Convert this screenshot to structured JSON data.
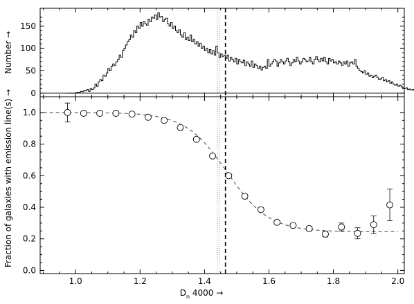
{
  "chart_data": [
    {
      "type": "histogram",
      "panel": "top",
      "ylabel": "Number →",
      "xlim": [
        0.89,
        2.02
      ],
      "ylim": [
        -8,
        190
      ],
      "yticks": [
        0,
        50,
        100,
        150
      ],
      "ytick_labels": [
        "0",
        "50",
        "100",
        "150"
      ],
      "bin_width": 0.005,
      "x_start": 0.975,
      "values": [
        0,
        0,
        0,
        0,
        0,
        1,
        2,
        2,
        4,
        3,
        6,
        5,
        8,
        4,
        10,
        8,
        12,
        20,
        15,
        25,
        30,
        28,
        40,
        38,
        45,
        55,
        50,
        60,
        65,
        62,
        70,
        75,
        85,
        80,
        95,
        100,
        108,
        115,
        120,
        130,
        125,
        140,
        135,
        150,
        145,
        158,
        150,
        160,
        155,
        152,
        165,
        160,
        170,
        168,
        175,
        165,
        180,
        170,
        172,
        160,
        165,
        168,
        155,
        150,
        158,
        145,
        150,
        140,
        135,
        142,
        130,
        125,
        135,
        120,
        125,
        118,
        130,
        115,
        120,
        110,
        115,
        105,
        112,
        100,
        105,
        95,
        100,
        90,
        98,
        88,
        95,
        85,
        105,
        90,
        80,
        88,
        82,
        85,
        78,
        85,
        72,
        80,
        75,
        70,
        78,
        65,
        75,
        70,
        68,
        74,
        62,
        70,
        65,
        60,
        72,
        58,
        65,
        62,
        55,
        60,
        52,
        58,
        60,
        55,
        75,
        60,
        65,
        70,
        75,
        72,
        60,
        68,
        75,
        70,
        65,
        72,
        78,
        70,
        62,
        68,
        75,
        70,
        80,
        72,
        65,
        70,
        78,
        75,
        70,
        72,
        80,
        70,
        65,
        75,
        82,
        75,
        70,
        78,
        72,
        80,
        70,
        65,
        78,
        72,
        75,
        68,
        70,
        65,
        72,
        68,
        62,
        70,
        65,
        72,
        60,
        68,
        70,
        65,
        75,
        60,
        55,
        50,
        48,
        45,
        50,
        42,
        45,
        38,
        40,
        35,
        38,
        40,
        35,
        30,
        32,
        35,
        28,
        30,
        25,
        28,
        22,
        25,
        20,
        18,
        20,
        15,
        18,
        14,
        12,
        10,
        12,
        8,
        9,
        7,
        8,
        6,
        5,
        6,
        4,
        3,
        4,
        3,
        2,
        2,
        1,
        1,
        0,
        1,
        0,
        0,
        0
      ]
    },
    {
      "type": "scatter",
      "panel": "bottom",
      "xlabel": "D",
      "xlabel_sub": "n",
      "xlabel_suffix": " 4000 →",
      "ylabel": "Fraction of galaxies with emission line(s) →",
      "xlim": [
        0.89,
        2.02
      ],
      "ylim": [
        -0.02,
        1.1
      ],
      "xticks": [
        1.0,
        1.2,
        1.4,
        1.6,
        1.8,
        2.0
      ],
      "xtick_labels": [
        "1.0",
        "1.2",
        "1.4",
        "1.6",
        "1.8",
        "2.0"
      ],
      "yticks": [
        0.0,
        0.2,
        0.4,
        0.6,
        0.8,
        1.0
      ],
      "ytick_labels": [
        "0.0",
        "0.2",
        "0.4",
        "0.6",
        "0.8",
        "1.0"
      ],
      "points": [
        {
          "x": 0.975,
          "y": 1.0,
          "err": 0.06
        },
        {
          "x": 1.025,
          "y": 0.995,
          "err": 0.01
        },
        {
          "x": 1.075,
          "y": 0.995,
          "err": 0.006
        },
        {
          "x": 1.125,
          "y": 0.995,
          "err": 0.005
        },
        {
          "x": 1.175,
          "y": 0.99,
          "err": 0.005
        },
        {
          "x": 1.225,
          "y": 0.97,
          "err": 0.006
        },
        {
          "x": 1.275,
          "y": 0.95,
          "err": 0.007
        },
        {
          "x": 1.325,
          "y": 0.905,
          "err": 0.008
        },
        {
          "x": 1.375,
          "y": 0.83,
          "err": 0.009
        },
        {
          "x": 1.425,
          "y": 0.725,
          "err": 0.01
        },
        {
          "x": 1.475,
          "y": 0.6,
          "err": 0.012
        },
        {
          "x": 1.525,
          "y": 0.47,
          "err": 0.012
        },
        {
          "x": 1.575,
          "y": 0.385,
          "err": 0.012
        },
        {
          "x": 1.625,
          "y": 0.305,
          "err": 0.012
        },
        {
          "x": 1.675,
          "y": 0.285,
          "err": 0.012
        },
        {
          "x": 1.725,
          "y": 0.265,
          "err": 0.015
        },
        {
          "x": 1.775,
          "y": 0.23,
          "err": 0.018
        },
        {
          "x": 1.825,
          "y": 0.275,
          "err": 0.025
        },
        {
          "x": 1.875,
          "y": 0.235,
          "err": 0.035
        },
        {
          "x": 1.925,
          "y": 0.29,
          "err": 0.055
        },
        {
          "x": 1.975,
          "y": 0.415,
          "err": 0.1
        }
      ],
      "fit_curve": {
        "plateau_high": 1.0,
        "plateau_low": 0.245,
        "midpoint": 1.47,
        "width": 0.065,
        "style": "dashed"
      }
    }
  ],
  "reference_lines": [
    {
      "x": 1.44,
      "style": "dotted"
    },
    {
      "x": 1.445,
      "style": "dotted"
    },
    {
      "x": 1.465,
      "style": "dashed-thick"
    }
  ]
}
